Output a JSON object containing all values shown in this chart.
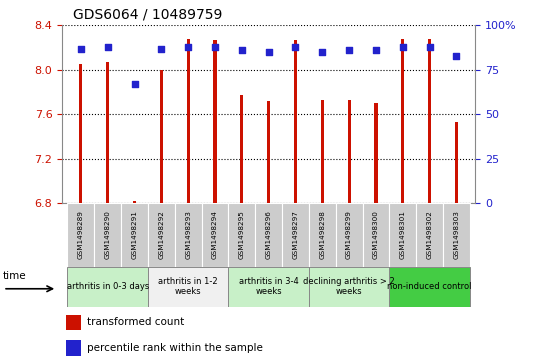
{
  "title": "GDS6064 / 10489759",
  "samples": [
    "GSM1498289",
    "GSM1498290",
    "GSM1498291",
    "GSM1498292",
    "GSM1498293",
    "GSM1498294",
    "GSM1498295",
    "GSM1498296",
    "GSM1498297",
    "GSM1498298",
    "GSM1498299",
    "GSM1498300",
    "GSM1498301",
    "GSM1498302",
    "GSM1498303"
  ],
  "bar_values": [
    8.05,
    8.07,
    6.82,
    8.0,
    8.28,
    8.27,
    7.77,
    7.72,
    8.27,
    7.73,
    7.73,
    7.7,
    8.28,
    8.28,
    7.53
  ],
  "dot_values": [
    87,
    88,
    67,
    87,
    88,
    88,
    86,
    85,
    88,
    85,
    86,
    86,
    88,
    88,
    83
  ],
  "bar_bottom": 6.8,
  "ylim_left": [
    6.8,
    8.4
  ],
  "ylim_right": [
    0,
    100
  ],
  "yticks_left": [
    6.8,
    7.2,
    7.6,
    8.0,
    8.4
  ],
  "yticks_right": [
    0,
    25,
    50,
    75,
    100
  ],
  "ytick_labels_right": [
    "0",
    "25",
    "50",
    "75",
    "100%"
  ],
  "bar_color": "#cc1100",
  "dot_color": "#2222cc",
  "groups": [
    {
      "label": "arthritis in 0-3 days",
      "start": 0,
      "end": 3,
      "color": "#c8f0c8"
    },
    {
      "label": "arthritis in 1-2\nweeks",
      "start": 3,
      "end": 6,
      "color": "#f0f0f0"
    },
    {
      "label": "arthritis in 3-4\nweeks",
      "start": 6,
      "end": 9,
      "color": "#c8f0c8"
    },
    {
      "label": "declining arthritis > 2\nweeks",
      "start": 9,
      "end": 12,
      "color": "#c8f0c8"
    },
    {
      "label": "non-induced control",
      "start": 12,
      "end": 15,
      "color": "#44cc44"
    }
  ],
  "legend_bar_label": "transformed count",
  "legend_dot_label": "percentile rank within the sample",
  "time_label": "time",
  "bar_width": 0.12,
  "left_tick_color": "#cc1100",
  "right_tick_color": "#2222cc",
  "sample_box_color": "#cccccc",
  "spine_color": "#888888"
}
